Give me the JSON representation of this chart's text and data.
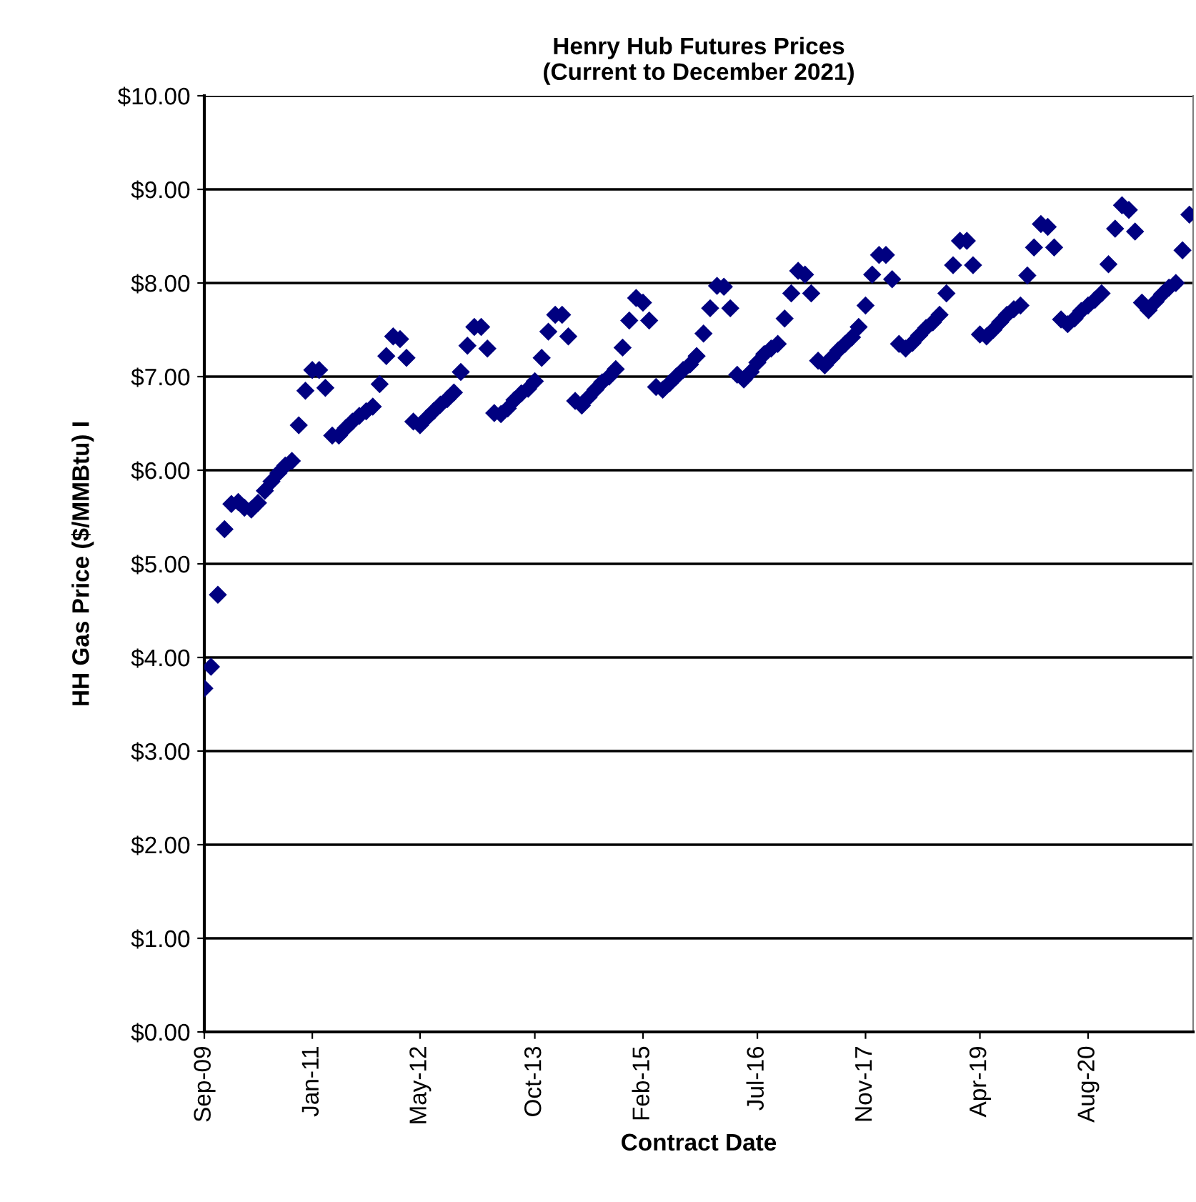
{
  "chart_data": {
    "type": "scatter",
    "title": "Henry Hub Futures Prices\n(Current to December 2021)",
    "xlabel": "Contract Date",
    "ylabel": "HH Gas Price ($/MMBtu) I",
    "x": [
      "2009-09",
      "2009-10",
      "2009-11",
      "2009-12",
      "2010-01",
      "2010-02",
      "2010-03",
      "2010-04",
      "2010-05",
      "2010-06",
      "2010-07",
      "2010-08",
      "2010-09",
      "2010-10",
      "2010-11",
      "2010-12",
      "2011-01",
      "2011-02",
      "2011-03",
      "2011-04",
      "2011-05",
      "2011-06",
      "2011-07",
      "2011-08",
      "2011-09",
      "2011-10",
      "2011-11",
      "2011-12",
      "2012-01",
      "2012-02",
      "2012-03",
      "2012-04",
      "2012-05",
      "2012-06",
      "2012-07",
      "2012-08",
      "2012-09",
      "2012-10",
      "2012-11",
      "2012-12",
      "2013-01",
      "2013-02",
      "2013-03",
      "2013-04",
      "2013-05",
      "2013-06",
      "2013-07",
      "2013-08",
      "2013-09",
      "2013-10",
      "2013-11",
      "2013-12",
      "2014-01",
      "2014-02",
      "2014-03",
      "2014-04",
      "2014-05",
      "2014-06",
      "2014-07",
      "2014-08",
      "2014-09",
      "2014-10",
      "2014-11",
      "2014-12",
      "2015-01",
      "2015-02",
      "2015-03",
      "2015-04",
      "2015-05",
      "2015-06",
      "2015-07",
      "2015-08",
      "2015-09",
      "2015-10",
      "2015-11",
      "2015-12",
      "2016-01",
      "2016-02",
      "2016-03",
      "2016-04",
      "2016-05",
      "2016-06",
      "2016-07",
      "2016-08",
      "2016-09",
      "2016-10",
      "2016-11",
      "2016-12",
      "2017-01",
      "2017-02",
      "2017-03",
      "2017-04",
      "2017-05",
      "2017-06",
      "2017-07",
      "2017-08",
      "2017-09",
      "2017-10",
      "2017-11",
      "2017-12",
      "2018-01",
      "2018-02",
      "2018-03",
      "2018-04",
      "2018-05",
      "2018-06",
      "2018-07",
      "2018-08",
      "2018-09",
      "2018-10",
      "2018-11",
      "2018-12",
      "2019-01",
      "2019-02",
      "2019-03",
      "2019-04",
      "2019-05",
      "2019-06",
      "2019-07",
      "2019-08",
      "2019-09",
      "2019-10",
      "2019-11",
      "2019-12",
      "2020-01",
      "2020-02",
      "2020-03",
      "2020-04",
      "2020-05",
      "2020-06",
      "2020-07",
      "2020-08",
      "2020-09",
      "2020-10",
      "2020-11",
      "2020-12",
      "2021-01",
      "2021-02",
      "2021-03",
      "2021-04",
      "2021-05",
      "2021-06",
      "2021-07",
      "2021-08",
      "2021-09",
      "2021-10",
      "2021-11"
    ],
    "series": [
      {
        "color": "#000080",
        "values": [
          3.67,
          3.9,
          4.67,
          5.37,
          5.64,
          5.66,
          5.6,
          5.58,
          5.65,
          5.78,
          5.88,
          5.97,
          6.05,
          6.1,
          6.48,
          6.85,
          7.07,
          7.07,
          6.88,
          6.37,
          6.37,
          6.45,
          6.52,
          6.58,
          6.63,
          6.68,
          6.92,
          7.22,
          7.43,
          7.4,
          7.2,
          6.52,
          6.48,
          6.56,
          6.63,
          6.7,
          6.76,
          6.83,
          7.05,
          7.33,
          7.53,
          7.53,
          7.3,
          6.61,
          6.6,
          6.66,
          6.75,
          6.82,
          6.87,
          6.95,
          7.2,
          7.48,
          7.66,
          7.66,
          7.43,
          6.74,
          6.69,
          6.78,
          6.86,
          6.94,
          7.0,
          7.08,
          7.31,
          7.6,
          7.84,
          7.79,
          7.6,
          6.89,
          6.86,
          6.93,
          7.0,
          7.07,
          7.13,
          7.22,
          7.46,
          7.73,
          7.97,
          7.96,
          7.73,
          7.02,
          6.97,
          7.05,
          7.15,
          7.24,
          7.3,
          7.35,
          7.62,
          7.89,
          8.13,
          8.09,
          7.89,
          7.17,
          7.12,
          7.2,
          7.28,
          7.35,
          7.42,
          7.53,
          7.76,
          8.09,
          8.3,
          8.3,
          8.04,
          7.35,
          7.3,
          7.36,
          7.44,
          7.52,
          7.58,
          7.66,
          7.89,
          8.19,
          8.45,
          8.45,
          8.19,
          7.45,
          7.43,
          7.5,
          7.58,
          7.66,
          7.72,
          7.76,
          8.08,
          8.38,
          8.63,
          8.6,
          8.38,
          7.61,
          7.56,
          7.62,
          7.7,
          7.76,
          7.82,
          7.89,
          8.2,
          8.58,
          8.83,
          8.78,
          8.55,
          7.79,
          7.71,
          7.8,
          7.88,
          7.95,
          8.0,
          8.35,
          8.73
        ]
      }
    ],
    "xlim": [
      "2009-09-01",
      "2021-11-18"
    ],
    "xticks": [
      {
        "value": "2009-09-01",
        "label": "Sep-09"
      },
      {
        "value": "2011-01-01",
        "label": "Jan-11"
      },
      {
        "value": "2012-05-01",
        "label": "May-12"
      },
      {
        "value": "2013-10-01",
        "label": "Oct-13"
      },
      {
        "value": "2015-02-01",
        "label": "Feb-15"
      },
      {
        "value": "2016-07-01",
        "label": "Jul-16"
      },
      {
        "value": "2017-11-01",
        "label": "Nov-17"
      },
      {
        "value": "2019-04-01",
        "label": "Apr-19"
      },
      {
        "value": "2020-08-01",
        "label": "Aug-20"
      }
    ],
    "ylim": [
      0,
      10
    ],
    "yticks": [
      {
        "value": 0,
        "label": "$0.00"
      },
      {
        "value": 1,
        "label": "$1.00"
      },
      {
        "value": 2,
        "label": "$2.00"
      },
      {
        "value": 3,
        "label": "$3.00"
      },
      {
        "value": 4,
        "label": "$4.00"
      },
      {
        "value": 5,
        "label": "$5.00"
      },
      {
        "value": 6,
        "label": "$6.00"
      },
      {
        "value": 7,
        "label": "$7.00"
      },
      {
        "value": 8,
        "label": "$8.00"
      },
      {
        "value": 9,
        "label": "$9.00"
      },
      {
        "value": 10,
        "label": "$10.00"
      }
    ],
    "grid": "y",
    "marker": "diamond"
  }
}
